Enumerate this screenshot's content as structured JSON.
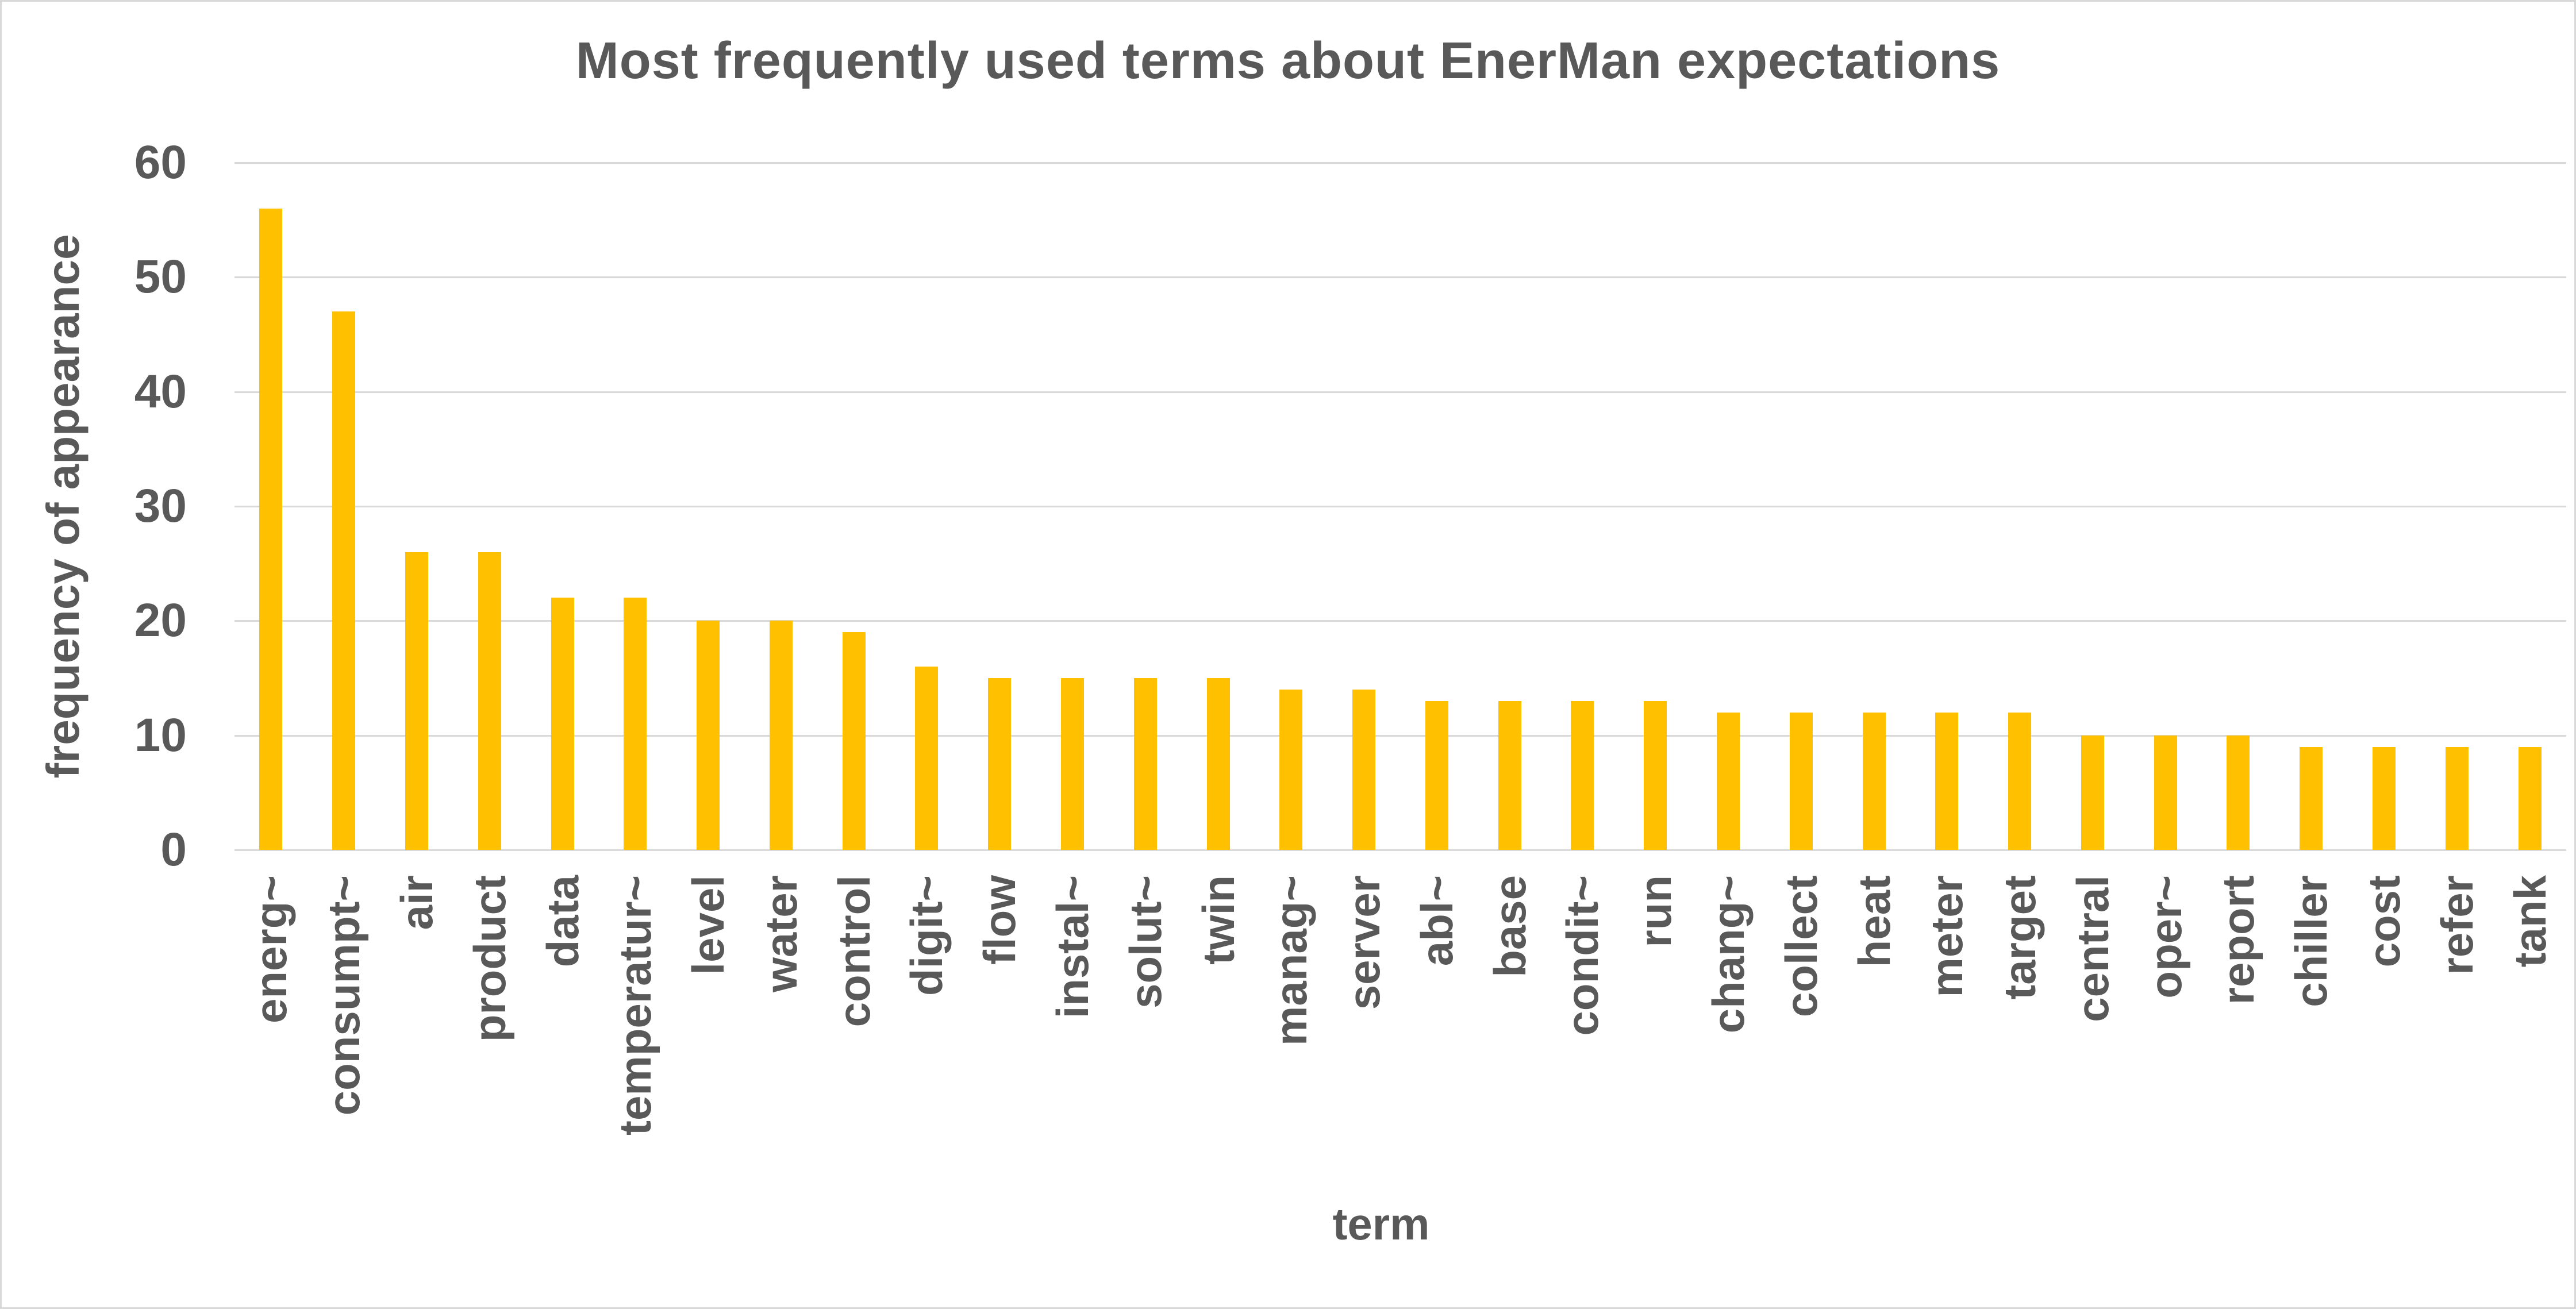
{
  "chart_data": {
    "type": "bar",
    "title": "Most frequently used terms about EnerMan expectations",
    "xlabel": "term",
    "ylabel": "frequency of appearance",
    "categories": [
      "energ~",
      "consumpt~",
      "air",
      "product",
      "data",
      "temperatur~",
      "level",
      "water",
      "control",
      "digit~",
      "flow",
      "instal~",
      "solut~",
      "twin",
      "manag~",
      "server",
      "abl~",
      "base",
      "condit~",
      "run",
      "chang~",
      "collect",
      "heat",
      "meter",
      "target",
      "central",
      "oper~",
      "report",
      "chiller",
      "cost",
      "refer",
      "tank"
    ],
    "values": [
      56,
      47,
      26,
      26,
      22,
      22,
      20,
      20,
      19,
      16,
      15,
      15,
      15,
      15,
      14,
      14,
      13,
      13,
      13,
      13,
      12,
      12,
      12,
      12,
      12,
      10,
      10,
      10,
      9,
      9,
      9,
      9
    ],
    "ylim": [
      0,
      60
    ],
    "yticks": [
      0,
      10,
      20,
      30,
      40,
      50,
      60
    ],
    "grid": "horizontal",
    "legend": "none",
    "bar_color": "#FFC000",
    "text_color": "#595959",
    "gridline_color": "#D9D9D9"
  }
}
